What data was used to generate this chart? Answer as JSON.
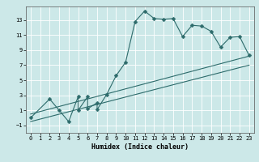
{
  "title": "",
  "xlabel": "Humidex (Indice chaleur)",
  "bg_color": "#cce8e8",
  "line_color": "#2d6b6b",
  "grid_color": "#ffffff",
  "xlim": [
    -0.5,
    23.5
  ],
  "ylim": [
    -2.0,
    14.8
  ],
  "xticks": [
    0,
    1,
    2,
    3,
    4,
    5,
    6,
    7,
    8,
    9,
    10,
    11,
    12,
    13,
    14,
    15,
    16,
    17,
    18,
    19,
    20,
    21,
    22,
    23
  ],
  "yticks": [
    -1,
    1,
    3,
    5,
    7,
    9,
    11,
    13
  ],
  "main_x": [
    0,
    2,
    3,
    4,
    5,
    5,
    6,
    6,
    7,
    7,
    8,
    9,
    10,
    11,
    12,
    13,
    14,
    15,
    16,
    17,
    18,
    19,
    20,
    21,
    22,
    23
  ],
  "main_y": [
    0.0,
    2.5,
    1.0,
    -0.5,
    2.8,
    1.0,
    2.8,
    1.2,
    2.0,
    1.1,
    3.1,
    5.6,
    7.4,
    12.8,
    14.2,
    13.2,
    13.1,
    13.2,
    10.8,
    12.3,
    12.2,
    11.5,
    9.4,
    10.7,
    10.8,
    8.3
  ],
  "line1_x": [
    0,
    23
  ],
  "line1_y": [
    0.5,
    8.2
  ],
  "line2_x": [
    0,
    23
  ],
  "line2_y": [
    -0.5,
    7.0
  ],
  "marker_size": 2.5,
  "lw": 0.8,
  "tick_fontsize": 5.0,
  "xlabel_fontsize": 6.0
}
